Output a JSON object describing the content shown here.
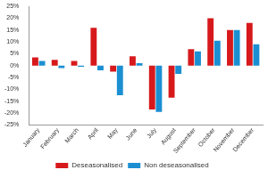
{
  "chart_data": {
    "type": "bar",
    "categories": [
      "January",
      "February",
      "March",
      "April",
      "May",
      "June",
      "July",
      "August",
      "September",
      "October",
      "November",
      "December"
    ],
    "series": [
      {
        "name": "Deseasonalised",
        "color": "#d7191c",
        "values": [
          3.5,
          2.5,
          2,
          16,
          -2.5,
          4,
          -18.5,
          -13.5,
          7,
          20,
          15,
          18
        ]
      },
      {
        "name": "Non deseasonalised",
        "color": "#1b8fd2",
        "values": [
          2,
          -1,
          -0.5,
          -2,
          -12.5,
          1,
          -19.5,
          -3.5,
          6,
          10.5,
          15,
          9
        ]
      }
    ],
    "ylim": [
      -25,
      25
    ],
    "yticks": [
      {
        "value": -25,
        "label": "-25%"
      },
      {
        "value": -20,
        "label": "-20%"
      },
      {
        "value": -15,
        "label": "-15%"
      },
      {
        "value": -10,
        "label": "-10%"
      },
      {
        "value": -5,
        "label": "-5%"
      },
      {
        "value": 0,
        "label": "0%"
      },
      {
        "value": 5,
        "label": "5%"
      },
      {
        "value": 10,
        "label": "10%"
      },
      {
        "value": 15,
        "label": "15%"
      },
      {
        "value": 20,
        "label": "20%"
      },
      {
        "value": 25,
        "label": "25%"
      }
    ],
    "grid": false,
    "legend": "bottom"
  }
}
